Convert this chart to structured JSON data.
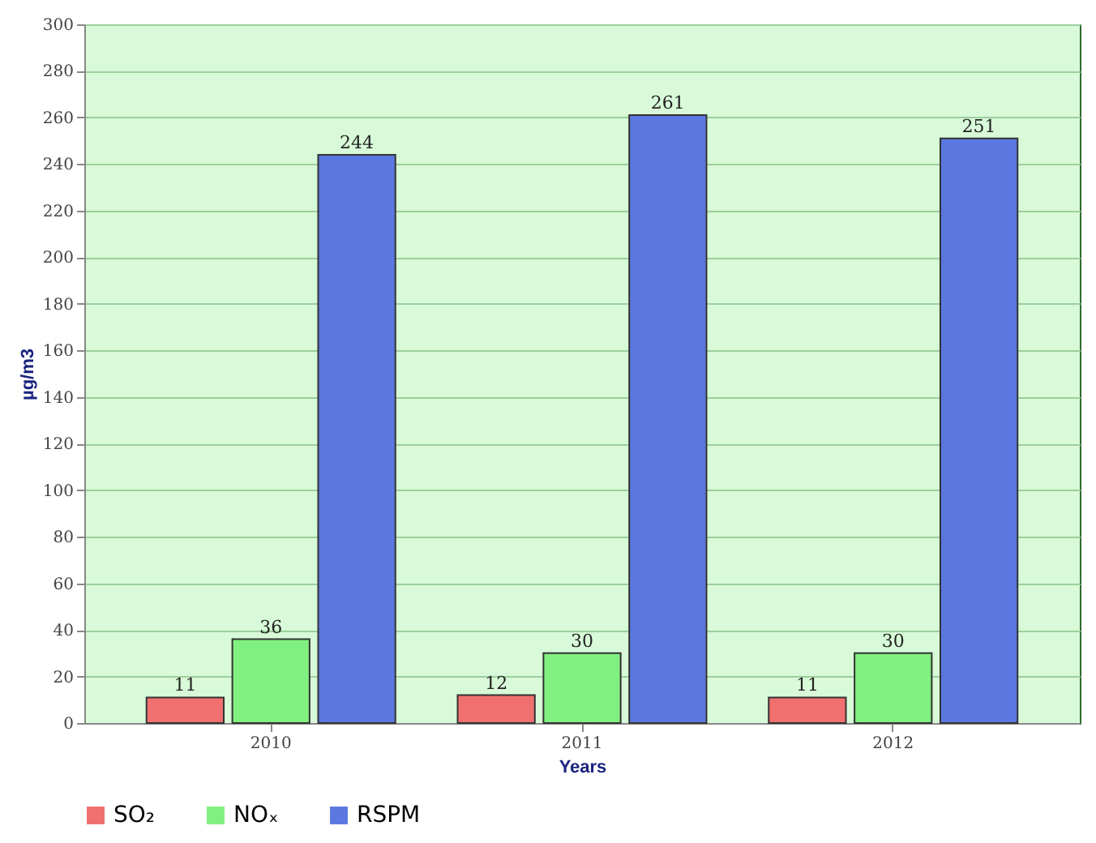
{
  "chart_data": {
    "type": "bar",
    "xlabel": "Years",
    "ylabel": "µg/m3",
    "categories": [
      "2010",
      "2011",
      "2012"
    ],
    "series": [
      {
        "name": "SO₂",
        "color": "#f07070",
        "values": [
          11,
          12,
          11
        ]
      },
      {
        "name": "NOₓ",
        "color": "#80f080",
        "values": [
          36,
          30,
          30
        ]
      },
      {
        "name": "RSPM",
        "color": "#5a78e0",
        "values": [
          244,
          261,
          251
        ]
      }
    ],
    "ylim": [
      0,
      300
    ],
    "yticks": [
      0,
      20,
      40,
      60,
      80,
      100,
      120,
      140,
      160,
      180,
      200,
      220,
      240,
      260,
      280,
      300
    ],
    "grid": "y",
    "legend": "bottom left",
    "data_labels": true
  }
}
